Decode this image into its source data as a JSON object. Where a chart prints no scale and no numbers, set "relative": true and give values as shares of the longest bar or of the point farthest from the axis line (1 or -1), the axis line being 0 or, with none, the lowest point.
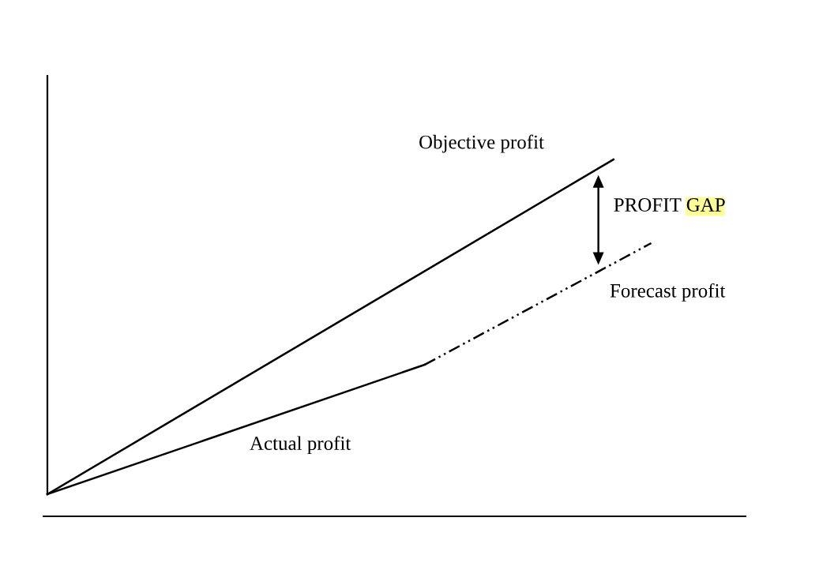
{
  "chart_data": {
    "type": "line",
    "relative": true,
    "marker": "none",
    "categories": [
      null,
      null,
      null,
      null,
      null,
      null,
      null,
      null,
      null,
      null,
      null,
      null,
      null,
      null,
      null,
      null,
      null,
      null,
      null
    ],
    "series": [
      {
        "name": "Objective profit",
        "color": "#000000",
        "values": [
          0,
          null,
          null,
          null,
          null,
          null,
          null,
          null,
          null,
          null,
          null,
          null,
          null,
          null,
          null,
          1,
          null,
          null,
          null
        ],
        "line_style": "solid"
      },
      {
        "name": "Actual profit",
        "color": "#000000",
        "values": [
          0,
          null,
          null,
          null,
          null,
          null,
          null,
          null,
          null,
          null,
          0.387,
          null,
          null,
          null,
          null,
          null,
          null,
          null,
          null
        ],
        "line_style": "solid"
      },
      {
        "name": "Forecast profit",
        "color": "#000000",
        "values": [
          null,
          null,
          null,
          null,
          null,
          null,
          null,
          null,
          null,
          null,
          0.387,
          null,
          null,
          null,
          null,
          null,
          0.75,
          null,
          null
        ],
        "line_style": "dashed"
      }
    ],
    "annotations": [
      "PROFIT GAP"
    ]
  }
}
